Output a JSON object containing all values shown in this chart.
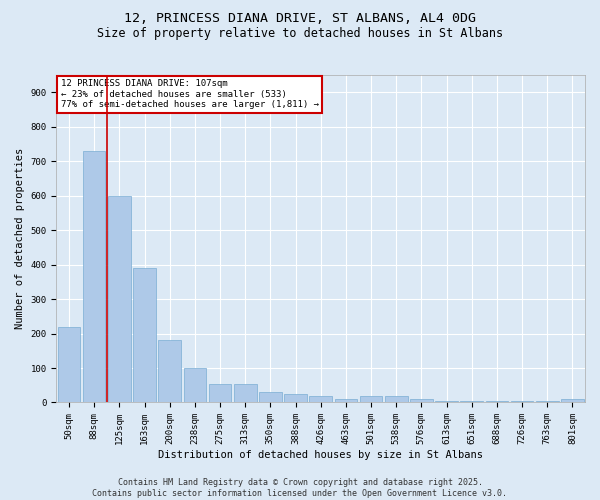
{
  "title1": "12, PRINCESS DIANA DRIVE, ST ALBANS, AL4 0DG",
  "title2": "Size of property relative to detached houses in St Albans",
  "xlabel": "Distribution of detached houses by size in St Albans",
  "ylabel": "Number of detached properties",
  "categories": [
    "50sqm",
    "88sqm",
    "125sqm",
    "163sqm",
    "200sqm",
    "238sqm",
    "275sqm",
    "313sqm",
    "350sqm",
    "388sqm",
    "426sqm",
    "463sqm",
    "501sqm",
    "538sqm",
    "576sqm",
    "613sqm",
    "651sqm",
    "688sqm",
    "726sqm",
    "763sqm",
    "801sqm"
  ],
  "values": [
    220,
    730,
    600,
    390,
    180,
    100,
    55,
    55,
    30,
    25,
    20,
    10,
    20,
    20,
    10,
    5,
    5,
    5,
    5,
    5,
    10
  ],
  "bar_color": "#aec9e8",
  "bar_edgecolor": "#7aadd4",
  "background_color": "#dce9f5",
  "plot_bg_color": "#dce9f5",
  "grid_color": "#ffffff",
  "annotation_text": "12 PRINCESS DIANA DRIVE: 107sqm\n← 23% of detached houses are smaller (533)\n77% of semi-detached houses are larger (1,811) →",
  "annotation_box_color": "#ffffff",
  "annotation_box_edgecolor": "#cc0000",
  "vline_color": "#cc0000",
  "ylim": [
    0,
    950
  ],
  "yticks": [
    0,
    100,
    200,
    300,
    400,
    500,
    600,
    700,
    800,
    900
  ],
  "footnote": "Contains HM Land Registry data © Crown copyright and database right 2025.\nContains public sector information licensed under the Open Government Licence v3.0.",
  "title_fontsize": 9.5,
  "subtitle_fontsize": 8.5,
  "label_fontsize": 7.5,
  "tick_fontsize": 6.5,
  "annot_fontsize": 6.5,
  "footnote_fontsize": 6.0
}
